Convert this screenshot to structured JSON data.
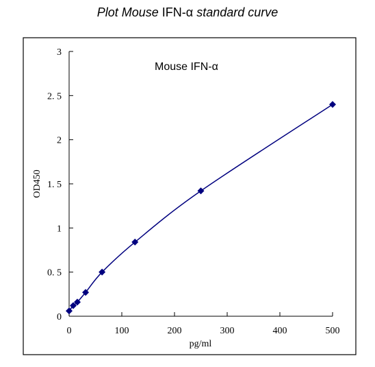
{
  "title_parts": {
    "part1": "Plot Mouse ",
    "part2": "IFN-α",
    "part3": " standard curve"
  },
  "chart_data": {
    "type": "scatter",
    "title": "Plot Mouse IFN-α standard curve",
    "annotation": "Mouse IFN-α",
    "xlabel": "pg/ml",
    "ylabel": "OD450",
    "xlim": [
      0,
      500
    ],
    "ylim": [
      0,
      3
    ],
    "x_ticks": [
      0,
      100,
      200,
      300,
      400,
      500
    ],
    "y_ticks": [
      0,
      0.5,
      1,
      1.5,
      2,
      2.5,
      3
    ],
    "x_tick_labels": [
      "0",
      "100",
      "200",
      "300",
      "400",
      "500"
    ],
    "y_tick_labels": [
      "0",
      "0. 5",
      "1",
      "1. 5",
      "2",
      "2. 5",
      "3"
    ],
    "grid": false,
    "series": [
      {
        "x": [
          0,
          7.8,
          15.6,
          31.25,
          62.5,
          125,
          250,
          500
        ],
        "y": [
          0.06,
          0.12,
          0.16,
          0.27,
          0.5,
          0.84,
          1.42,
          2.4
        ],
        "marker": "diamond",
        "color": "#00007f",
        "curve": "fitted"
      }
    ]
  }
}
